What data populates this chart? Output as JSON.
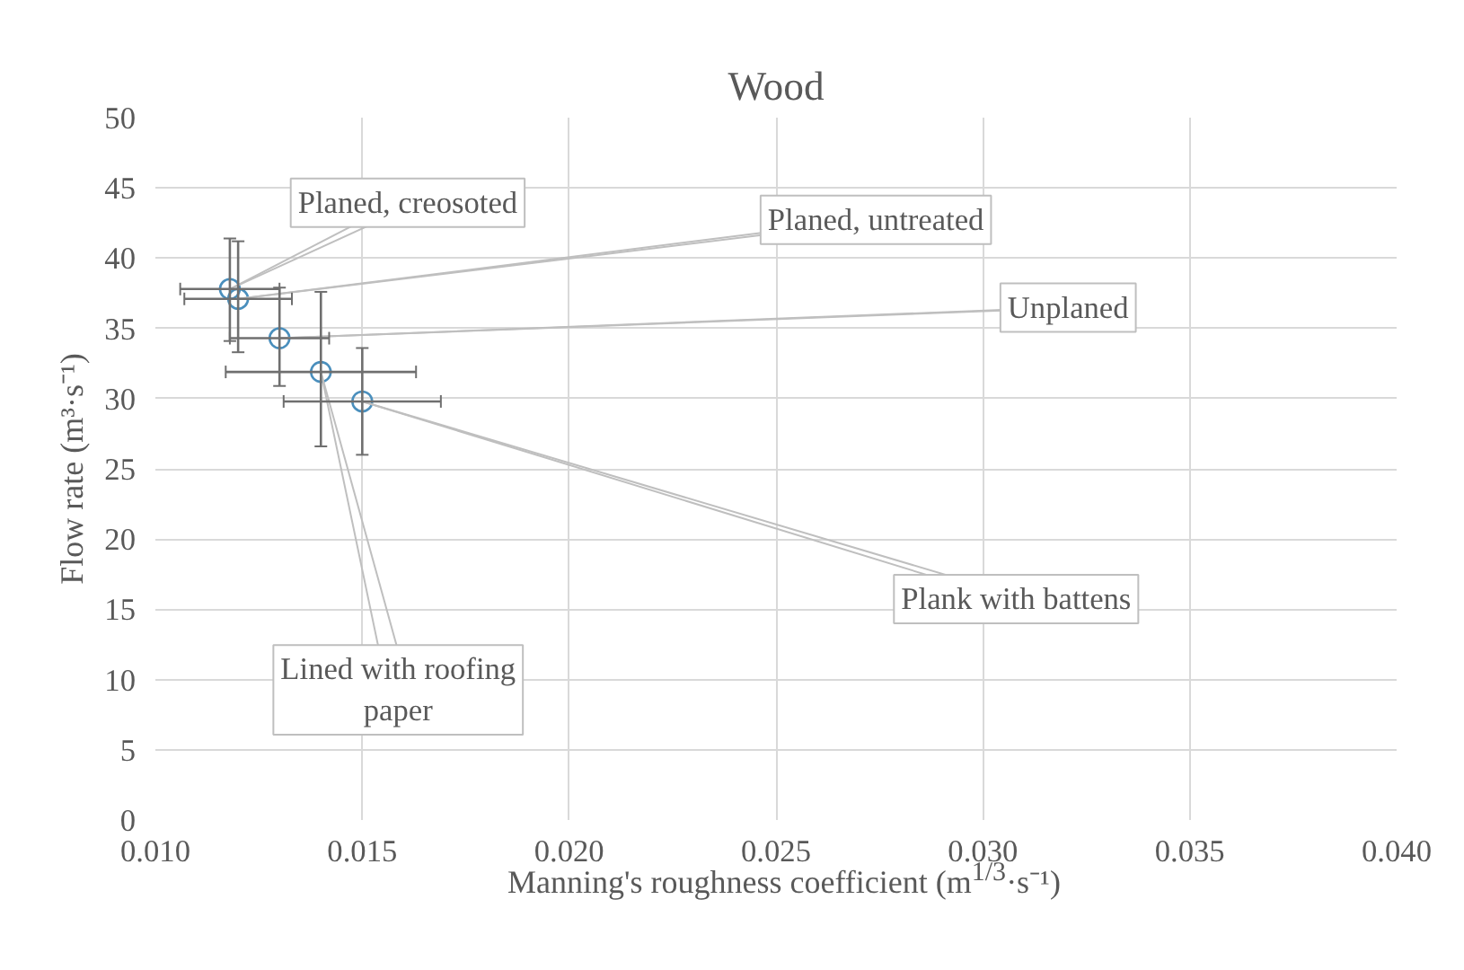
{
  "chart_data": {
    "type": "scatter",
    "title": "Wood",
    "xlabel": "Manning's roughness coefficient (m$^{1/3}$·s⁻¹)",
    "ylabel": "Flow rate (m³·s⁻¹)",
    "x": [
      0.0118,
      0.012,
      0.013,
      0.014,
      0.015
    ],
    "series": [
      {
        "color": "#4a8fbd",
        "values": [
          37.8,
          37.1,
          34.3,
          31.9,
          29.8
        ],
        "errors": [
          [
            34.1,
            41.4
          ],
          [
            33.3,
            41.2
          ],
          [
            30.9,
            37.9
          ],
          [
            26.6,
            37.6
          ],
          [
            26.0,
            33.6
          ]
        ],
        "xerrors": [
          [
            0.0106,
            0.013
          ],
          [
            0.0107,
            0.0133
          ],
          [
            0.0118,
            0.0142
          ],
          [
            0.0117,
            0.0163
          ],
          [
            0.0131,
            0.0169
          ]
        ]
      }
    ],
    "annotations": [
      {
        "text": "Planed, creosoted",
        "x": 0.0118,
        "y": 37.8
      },
      {
        "text": "Planed, untreated",
        "x": 0.012,
        "y": 37.1
      },
      {
        "text": "Unplaned",
        "x": 0.013,
        "y": 34.3
      },
      {
        "text": "Lined with roofing paper",
        "x": 0.014,
        "y": 31.9
      },
      {
        "text": "Plank with battens",
        "x": 0.015,
        "y": 29.8
      }
    ],
    "xlim": [
      0.01,
      0.04
    ],
    "ylim": [
      0,
      50
    ],
    "xticks": [
      {
        "value": 0.01,
        "label": "0.010"
      },
      {
        "value": 0.015,
        "label": "0.015"
      },
      {
        "value": 0.02,
        "label": "0.020"
      },
      {
        "value": 0.025,
        "label": "0.025"
      },
      {
        "value": 0.03,
        "label": "0.030"
      },
      {
        "value": 0.035,
        "label": "0.035"
      },
      {
        "value": 0.04,
        "label": "0.040"
      }
    ],
    "yticks": [
      0,
      5,
      10,
      15,
      20,
      25,
      30,
      35,
      40,
      45,
      50
    ],
    "grid": true,
    "marker": "circle"
  }
}
